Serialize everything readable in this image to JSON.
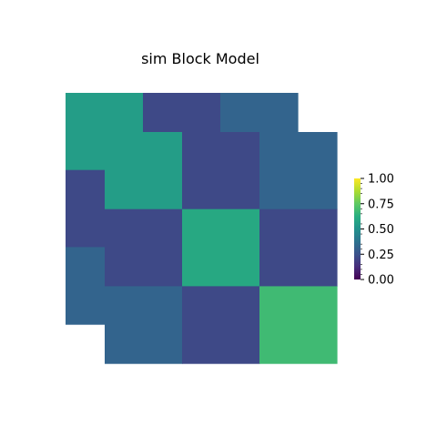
{
  "chart_data": {
    "type": "heatmap",
    "title": "sim Block Model",
    "colormap": "viridis",
    "vmin": 0,
    "vmax": 1,
    "left_matrix": [
      [
        0.55,
        0.22,
        0.32
      ],
      [
        0.22,
        0.55,
        0.22
      ],
      [
        0.32,
        0.22,
        0.55
      ]
    ],
    "right_matrix": [
      [
        0.55,
        0.22,
        0.32
      ],
      [
        0.22,
        0.6,
        0.22
      ],
      [
        0.32,
        0.22,
        0.68
      ]
    ],
    "colorbar": {
      "ticks": [
        "0.00",
        "0.25",
        "0.50",
        "0.75",
        "1.00"
      ],
      "tick_values": [
        0,
        0.25,
        0.5,
        0.75,
        1.0
      ]
    },
    "axes_visible": false,
    "grid": false
  }
}
